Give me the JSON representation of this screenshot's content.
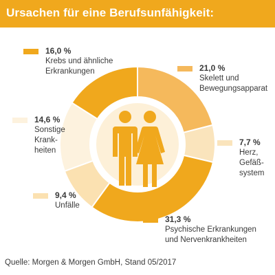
{
  "header": {
    "title": "Ursachen für eine Berufsunfähigkeit:"
  },
  "chart_data": {
    "type": "pie",
    "title": "Ursachen für eine Berufsunfähigkeit:",
    "donut": true,
    "center_icon": "man-woman-icon",
    "slices": [
      {
        "value_label": "21,0 %",
        "value": 21.0,
        "desc_lines": [
          "Skelett und",
          "Bewegungsapparat"
        ],
        "color": "#f5b95c"
      },
      {
        "value_label": "7,7 %",
        "value": 7.7,
        "desc_lines": [
          "Herz,",
          "Gefäß-",
          "system"
        ],
        "color": "#fae4bc"
      },
      {
        "value_label": "31,3 %",
        "value": 31.3,
        "desc_lines": [
          "Psychische Erkrankungen",
          "und Nervenkrankheiten"
        ],
        "color": "#f0a81d"
      },
      {
        "value_label": "9,4 %",
        "value": 9.4,
        "desc_lines": [
          "Unfälle"
        ],
        "color": "#fbe1b1"
      },
      {
        "value_label": "14,6 %",
        "value": 14.6,
        "desc_lines": [
          "Sonstige",
          "Krank-",
          "heiten"
        ],
        "color": "#fdf2de"
      },
      {
        "value_label": "16,0 %",
        "value": 16.0,
        "desc_lines": [
          "Krebs und ähnliche",
          "Erkrankungen"
        ],
        "color": "#f0a81d"
      }
    ],
    "legend_placement": "around"
  },
  "footer": {
    "source": "Quelle: Morgen & Morgen GmbH, Stand 05/2017"
  }
}
